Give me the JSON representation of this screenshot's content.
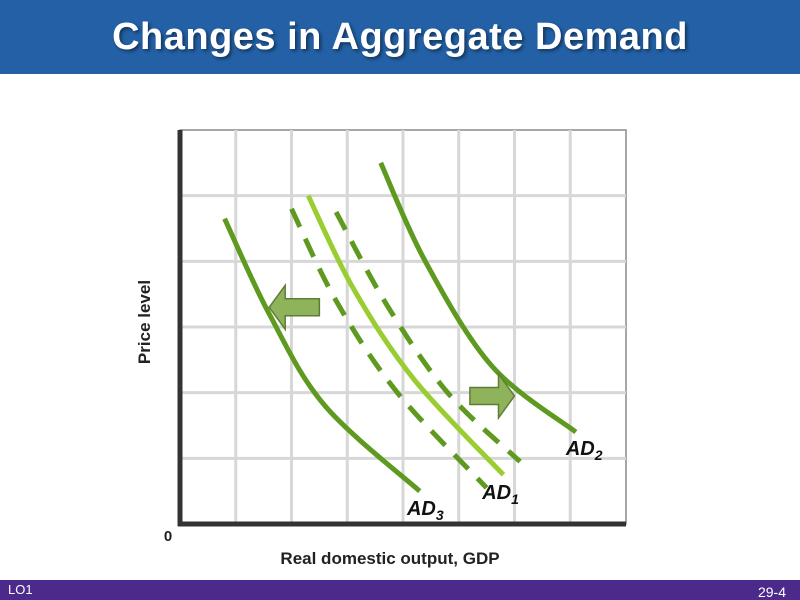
{
  "header": {
    "title": "Changes in Aggregate Demand"
  },
  "footer": {
    "lo_label": "LO1",
    "page_number": "29-4"
  },
  "colors": {
    "title_bar": "#2360a5",
    "footer_bar": "#4b2a8c",
    "curve_dark": "#5e9a1f",
    "curve_light": "#9acd32",
    "arrow_fill": "#8fb35a",
    "arrow_stroke": "#5e7d34",
    "grid": "#d7d7d7"
  },
  "chart_data": {
    "type": "line",
    "xlabel": "Real domestic output, GDP",
    "ylabel": "Price level",
    "origin_label": "0",
    "xlim": [
      0,
      8
    ],
    "ylim": [
      0,
      6
    ],
    "grid": true,
    "series": [
      {
        "name": "AD3",
        "label_main": "AD",
        "label_sub": "3",
        "style": "solid-dark",
        "points": [
          [
            0.8,
            4.65
          ],
          [
            1.6,
            3.2
          ],
          [
            2.6,
            1.8
          ],
          [
            4.3,
            0.5
          ]
        ]
      },
      {
        "name": "AD1",
        "label_main": "AD",
        "label_sub": "1",
        "style": "solid-light",
        "points": [
          [
            2.3,
            5.0
          ],
          [
            3.1,
            3.6
          ],
          [
            4.2,
            2.2
          ],
          [
            5.8,
            0.75
          ]
        ]
      },
      {
        "name": "AD1-upper",
        "style": "dashed-dark",
        "points": [
          [
            2.0,
            4.8
          ],
          [
            2.8,
            3.4
          ],
          [
            3.9,
            2.0
          ],
          [
            5.5,
            0.55
          ]
        ]
      },
      {
        "name": "AD1-lower",
        "style": "dashed-dark",
        "points": [
          [
            2.8,
            4.75
          ],
          [
            3.7,
            3.35
          ],
          [
            4.8,
            2.0
          ],
          [
            6.1,
            0.95
          ]
        ]
      },
      {
        "name": "AD2",
        "label_main": "AD",
        "label_sub": "2",
        "style": "solid-dark",
        "points": [
          [
            3.6,
            5.5
          ],
          [
            4.4,
            4.0
          ],
          [
            5.6,
            2.4
          ],
          [
            7.1,
            1.4
          ]
        ]
      }
    ],
    "annotations": [
      {
        "type": "arrow",
        "direction": "left",
        "meaning": "decrease in aggregate demand",
        "x": [
          1.6,
          2.5
        ],
        "y": 3.3
      },
      {
        "type": "arrow",
        "direction": "right",
        "meaning": "increase in aggregate demand",
        "x": [
          5.2,
          6.0
        ],
        "y": 1.95
      }
    ]
  }
}
